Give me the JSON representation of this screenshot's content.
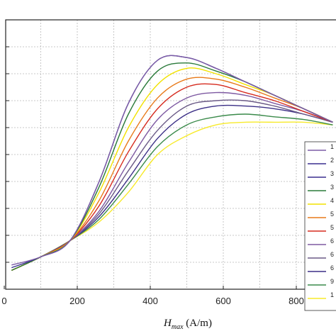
{
  "chart_data": {
    "type": "line",
    "title": "",
    "xlabel": {
      "symbol": "H",
      "subscript": "max",
      "unit": " (A/m)"
    },
    "ylabel": "",
    "xlim": [
      0,
      900
    ],
    "ylim": [
      0,
      10
    ],
    "x_ticks": [
      0,
      200,
      400,
      600,
      800
    ],
    "x_tick_labels": [
      "0",
      "200",
      "400",
      "600",
      "800"
    ],
    "grid": true,
    "legend_position": "right",
    "legend_labels_visible": [
      "1",
      "2",
      "3",
      "3",
      "4",
      "5",
      "5",
      "6",
      "6",
      "6",
      "9",
      "1"
    ],
    "series": [
      {
        "color": "#7b5ba6",
        "x": [
          20,
          100,
          180,
          260,
          340,
          420,
          500,
          580,
          660,
          740,
          820,
          900
        ],
        "y": [
          0.9,
          1.2,
          1.8,
          4.0,
          6.9,
          8.5,
          8.6,
          8.2,
          7.7,
          7.2,
          6.7,
          6.2
        ]
      },
      {
        "color": "#3a2f8f",
        "x": [
          20,
          100,
          180,
          260,
          340,
          420,
          500,
          580,
          660,
          740,
          820,
          900
        ],
        "y": [
          0.8,
          1.2,
          1.8,
          4.0,
          6.9,
          8.5,
          8.6,
          8.2,
          7.7,
          7.2,
          6.7,
          6.2
        ]
      },
      {
        "color": "#2a7a3a",
        "x": [
          20,
          100,
          180,
          260,
          340,
          420,
          500,
          580,
          660,
          740,
          820,
          900
        ],
        "y": [
          0.7,
          1.2,
          1.8,
          3.8,
          6.5,
          8.1,
          8.4,
          8.1,
          7.7,
          7.2,
          6.7,
          6.2
        ]
      },
      {
        "color": "#f2e200",
        "x": [
          20,
          100,
          180,
          260,
          340,
          420,
          500,
          580,
          660,
          740,
          820,
          900
        ],
        "y": [
          0.7,
          1.2,
          1.8,
          3.6,
          6.0,
          7.6,
          8.2,
          8.0,
          7.6,
          7.2,
          6.7,
          6.2
        ]
      },
      {
        "color": "#e87a1a",
        "x": [
          20,
          100,
          180,
          260,
          340,
          420,
          500,
          580,
          660,
          740,
          820,
          900
        ],
        "y": [
          0.7,
          1.2,
          1.8,
          3.3,
          5.5,
          7.1,
          7.8,
          7.8,
          7.5,
          7.1,
          6.7,
          6.2
        ]
      },
      {
        "color": "#d62b1f",
        "x": [
          20,
          100,
          180,
          260,
          340,
          420,
          500,
          580,
          660,
          740,
          820,
          900
        ],
        "y": [
          0.7,
          1.2,
          1.8,
          3.1,
          5.1,
          6.7,
          7.5,
          7.6,
          7.3,
          7.0,
          6.6,
          6.2
        ]
      },
      {
        "color": "#7e5aa2",
        "x": [
          20,
          100,
          180,
          260,
          340,
          420,
          500,
          580,
          660,
          740,
          820,
          900
        ],
        "y": [
          0.7,
          1.2,
          1.8,
          2.9,
          4.7,
          6.3,
          7.1,
          7.3,
          7.2,
          6.9,
          6.6,
          6.2
        ]
      },
      {
        "color": "#6a5a86",
        "x": [
          20,
          100,
          180,
          260,
          340,
          420,
          500,
          580,
          660,
          740,
          820,
          900
        ],
        "y": [
          0.7,
          1.2,
          1.8,
          2.8,
          4.4,
          5.9,
          6.8,
          7.0,
          7.0,
          6.8,
          6.5,
          6.2
        ]
      },
      {
        "color": "#3b2f86",
        "x": [
          20,
          100,
          180,
          260,
          340,
          420,
          500,
          580,
          660,
          740,
          820,
          900
        ],
        "y": [
          0.7,
          1.2,
          1.8,
          2.7,
          4.1,
          5.6,
          6.5,
          6.8,
          6.8,
          6.7,
          6.5,
          6.2
        ]
      },
      {
        "color": "#3a8a4a",
        "x": [
          20,
          100,
          180,
          260,
          340,
          420,
          500,
          580,
          660,
          740,
          820,
          900
        ],
        "y": [
          0.7,
          1.2,
          1.8,
          2.6,
          3.9,
          5.3,
          6.1,
          6.4,
          6.5,
          6.4,
          6.3,
          6.1
        ]
      },
      {
        "color": "#f7ea2a",
        "x": [
          20,
          100,
          180,
          260,
          340,
          420,
          500,
          580,
          660,
          740,
          820,
          900
        ],
        "y": [
          0.7,
          1.2,
          1.8,
          2.5,
          3.6,
          5.0,
          5.7,
          6.1,
          6.2,
          6.2,
          6.2,
          6.1
        ]
      }
    ]
  }
}
